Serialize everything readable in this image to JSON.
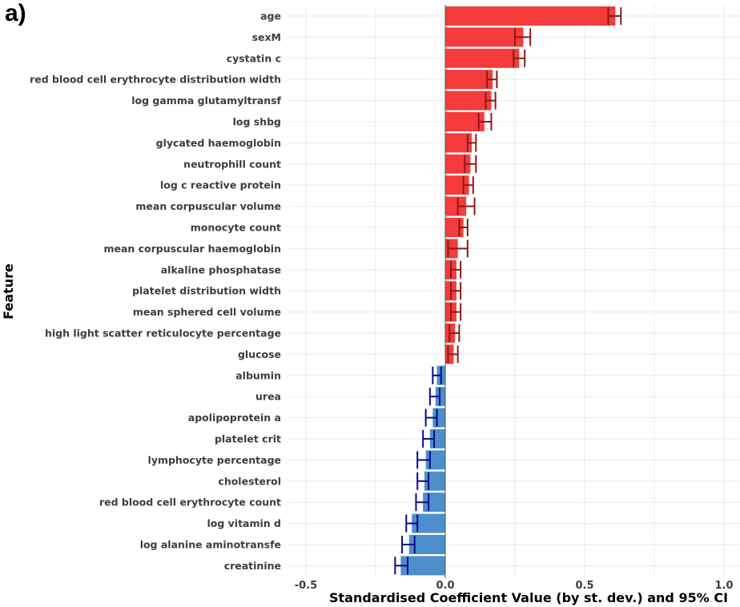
{
  "panel_label": "a)",
  "chart_data": {
    "type": "bar",
    "orientation": "horizontal",
    "title": "",
    "xlabel": "Standardised Coefficient Value (by st. dev.) and 95% CI",
    "ylabel": "Feature",
    "xlim": [
      -0.58,
      1.03
    ],
    "xticks": [
      -0.5,
      0.0,
      0.5,
      1.0
    ],
    "xtick_labels": [
      "-0.5",
      "0.0",
      "0.5",
      "1.0"
    ],
    "grid": true,
    "legend": "none",
    "colors": {
      "positive": "#f53b3b",
      "positive_ci": "#8b1a1a",
      "negative": "#4d8fcc",
      "negative_ci": "#0a0a8a"
    },
    "categories": [
      "age",
      "sexM",
      "cystatin c",
      "red blood cell erythrocyte distribution width",
      "log gamma glutamyltransf",
      "log shbg",
      "glycated haemoglobin",
      "neutrophill count",
      "log c reactive protein",
      "mean corpuscular volume",
      "monocyte count",
      "mean corpuscular haemoglobin",
      "alkaline phosphatase",
      "platelet distribution width",
      "mean sphered cell volume",
      "high light scatter reticulocyte percentage",
      "glucose",
      "albumin",
      "urea",
      "apolipoprotein a",
      "platelet crit",
      "lymphocyte percentage",
      "cholesterol",
      "red blood cell erythrocyte count",
      "log vitamin d",
      "log alanine aminotransfe",
      "creatinine"
    ],
    "values": [
      0.61,
      0.28,
      0.265,
      0.17,
      0.165,
      0.14,
      0.095,
      0.09,
      0.085,
      0.075,
      0.065,
      0.045,
      0.04,
      0.04,
      0.04,
      0.035,
      0.03,
      -0.03,
      -0.035,
      -0.045,
      -0.055,
      -0.07,
      -0.075,
      -0.08,
      -0.12,
      -0.13,
      -0.16
    ],
    "ci_low": [
      0.585,
      0.25,
      0.245,
      0.15,
      0.145,
      0.12,
      0.08,
      0.07,
      0.065,
      0.045,
      0.05,
      0.01,
      0.02,
      0.02,
      0.02,
      0.015,
      0.01,
      -0.045,
      -0.055,
      -0.07,
      -0.08,
      -0.1,
      -0.1,
      -0.105,
      -0.14,
      -0.155,
      -0.18
    ],
    "ci_high": [
      0.63,
      0.305,
      0.285,
      0.185,
      0.18,
      0.165,
      0.11,
      0.11,
      0.1,
      0.105,
      0.08,
      0.08,
      0.055,
      0.055,
      0.055,
      0.05,
      0.045,
      -0.015,
      -0.02,
      -0.03,
      -0.04,
      -0.055,
      -0.06,
      -0.06,
      -0.1,
      -0.11,
      -0.135
    ]
  }
}
